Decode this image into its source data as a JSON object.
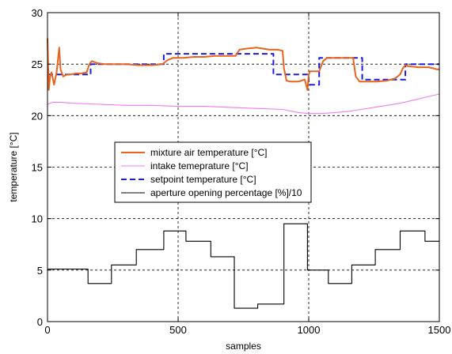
{
  "chart_data": {
    "type": "line",
    "xlabel": "samples",
    "ylabel": "temperature [°C]",
    "xlim": [
      0,
      1500
    ],
    "ylim": [
      0,
      30
    ],
    "xticks": [
      0,
      500,
      1000,
      1500
    ],
    "yticks": [
      0,
      5,
      10,
      15,
      20,
      25,
      30
    ],
    "grid": true,
    "legend_position": "center-left",
    "series": [
      {
        "name": "mixture air temperature [°C]",
        "color": "#e8641e",
        "style": "solid",
        "x": [
          0,
          5,
          10,
          15,
          25,
          35,
          45,
          50,
          60,
          75,
          90,
          110,
          130,
          150,
          160,
          170,
          190,
          220,
          260,
          300,
          350,
          400,
          440,
          460,
          480,
          520,
          560,
          600,
          640,
          680,
          720,
          735,
          760,
          800,
          850,
          880,
          900,
          905,
          915,
          930,
          960,
          985,
          995,
          1000,
          1005,
          1020,
          1040,
          1055,
          1070,
          1100,
          1140,
          1170,
          1180,
          1195,
          1210,
          1260,
          1300,
          1330,
          1350,
          1360,
          1370,
          1380,
          1420,
          1460,
          1490,
          1500
        ],
        "y": [
          27.5,
          22.5,
          23.8,
          24.2,
          23.0,
          24.2,
          26.6,
          24.5,
          23.8,
          24.0,
          24.0,
          24.1,
          24.1,
          24.2,
          25.0,
          25.3,
          25.1,
          25.0,
          25.0,
          25.0,
          24.9,
          24.9,
          25.0,
          25.4,
          25.6,
          25.6,
          25.7,
          25.7,
          25.8,
          25.8,
          25.8,
          26.4,
          26.5,
          26.6,
          26.4,
          26.4,
          26.3,
          24.6,
          23.4,
          23.3,
          23.3,
          23.5,
          22.5,
          24.0,
          24.3,
          24.3,
          24.3,
          25.3,
          25.6,
          25.6,
          25.6,
          25.6,
          23.8,
          23.3,
          23.3,
          23.3,
          23.4,
          23.6,
          24.0,
          24.6,
          24.9,
          24.8,
          24.7,
          24.7,
          24.5,
          24.5
        ]
      },
      {
        "name": "intake temeprature [°C]",
        "color": "#f07cf0",
        "style": "solid",
        "x": [
          0,
          20,
          50,
          100,
          200,
          300,
          400,
          500,
          600,
          700,
          800,
          900,
          960,
          1000,
          1050,
          1100,
          1150,
          1200,
          1250,
          1300,
          1350,
          1400,
          1450,
          1500
        ],
        "y": [
          21.1,
          21.3,
          21.3,
          21.2,
          21.1,
          21.0,
          21.0,
          20.9,
          20.9,
          20.8,
          20.7,
          20.6,
          20.3,
          20.2,
          20.2,
          20.3,
          20.4,
          20.6,
          20.8,
          21.0,
          21.2,
          21.5,
          21.8,
          22.1
        ]
      },
      {
        "name": "setpoint temperature [°C]",
        "color": "#1c1cdc",
        "style": "dashed",
        "x": [
          0,
          165,
          165,
          445,
          445,
          865,
          865,
          1000,
          1000,
          1040,
          1040,
          1205,
          1205,
          1370,
          1370,
          1500
        ],
        "y": [
          24,
          24,
          25,
          25,
          26,
          26,
          24,
          24,
          23,
          23,
          25.6,
          25.6,
          23.5,
          23.5,
          25,
          25
        ]
      },
      {
        "name": "aperture opening percentage [%]/10",
        "color": "#000000",
        "style": "solid",
        "x": [
          0,
          155,
          155,
          245,
          245,
          340,
          340,
          445,
          445,
          530,
          530,
          625,
          625,
          715,
          715,
          805,
          805,
          905,
          905,
          995,
          995,
          1075,
          1075,
          1165,
          1165,
          1255,
          1255,
          1350,
          1350,
          1445,
          1445,
          1500
        ],
        "y": [
          5.1,
          5.1,
          3.7,
          3.7,
          5.5,
          5.5,
          7.0,
          7.0,
          8.8,
          8.8,
          7.8,
          7.8,
          6.3,
          6.3,
          1.3,
          1.3,
          1.7,
          1.7,
          9.5,
          9.5,
          5.0,
          5.0,
          3.7,
          3.7,
          5.5,
          5.5,
          7.0,
          7.0,
          8.8,
          8.8,
          7.8,
          7.8
        ]
      }
    ]
  }
}
